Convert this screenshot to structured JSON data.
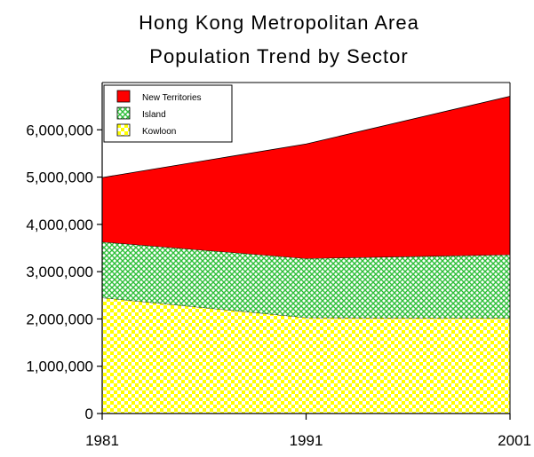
{
  "title_lines": [
    "Hong Kong Metropolitan Area",
    "Population Trend by Sector"
  ],
  "colors": {
    "new_territories": "#ff0000",
    "island": "#2fbf3a",
    "island_bg": "#ffffff",
    "kowloon": "#ffff00",
    "kowloon_bg": "#ffffff"
  },
  "chart_data": {
    "type": "area",
    "stacked": true,
    "title": "Hong Kong Metropolitan Area Population Trend by Sector",
    "xlabel": "",
    "ylabel": "",
    "x": [
      1981,
      1991,
      2001
    ],
    "x_tick_labels": [
      "1981",
      "1991",
      "2001"
    ],
    "ylim": [
      0,
      7000000
    ],
    "y_ticks": [
      0,
      1000000,
      2000000,
      3000000,
      4000000,
      5000000,
      6000000
    ],
    "y_tick_labels": [
      "0",
      "1,000,000",
      "2,000,000",
      "3,000,000",
      "4,000,000",
      "5,000,000",
      "6,000,000"
    ],
    "series": [
      {
        "name": "Kowloon",
        "values": [
          2450000,
          2030000,
          2020000
        ]
      },
      {
        "name": "Island",
        "values": [
          1180000,
          1250000,
          1340000
        ]
      },
      {
        "name": "New Territories",
        "values": [
          1360000,
          2420000,
          3350000
        ]
      }
    ],
    "legend": {
      "position": "top-left",
      "entries": [
        "New Territories",
        "Island",
        "Kowloon"
      ]
    },
    "grid": false
  }
}
